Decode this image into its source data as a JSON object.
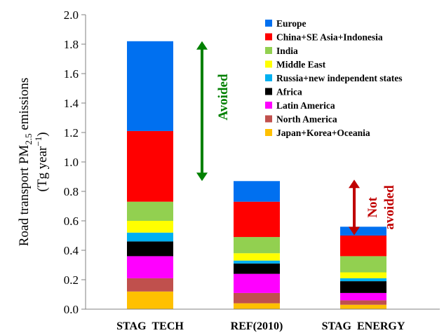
{
  "chart_data": {
    "type": "bar",
    "stacked": true,
    "categories": [
      "STAG_TECH",
      "REF(2010)",
      "STAG_ENERGY"
    ],
    "ylabel_line1": "Road transport PM",
    "ylabel_sub": "2.5",
    "ylabel_line1_end": " emissions",
    "ylabel_line2": "(Tg year",
    "ylabel_line2_sup": "−1",
    "ylabel_line2_end": ")",
    "ylim": [
      0,
      2.0
    ],
    "yticks": [
      "0.0",
      "0.2",
      "0.4",
      "0.6",
      "0.8",
      "1.0",
      "1.2",
      "1.4",
      "1.6",
      "1.8",
      "2.0"
    ],
    "grid": false,
    "legend_position": "top-right",
    "series": [
      {
        "name": "Japan+Korea+Oceania",
        "color": "#FFC000",
        "values": [
          0.12,
          0.04,
          0.03
        ]
      },
      {
        "name": "North America",
        "color": "#C0504D",
        "values": [
          0.09,
          0.07,
          0.03
        ]
      },
      {
        "name": "Latin America",
        "color": "#FF00FF",
        "values": [
          0.15,
          0.13,
          0.05
        ]
      },
      {
        "name": "Africa",
        "color": "#000000",
        "values": [
          0.1,
          0.07,
          0.08
        ]
      },
      {
        "name": "Russia+new independent states",
        "color": "#00B0F0",
        "values": [
          0.06,
          0.02,
          0.02
        ]
      },
      {
        "name": "Middle East",
        "color": "#FFFF00",
        "values": [
          0.08,
          0.05,
          0.04
        ]
      },
      {
        "name": "India",
        "color": "#92D050",
        "values": [
          0.13,
          0.11,
          0.11
        ]
      },
      {
        "name": "China+SE Asia+Indonesia",
        "color": "#FF0000",
        "values": [
          0.48,
          0.24,
          0.14
        ]
      },
      {
        "name": "Europe",
        "color": "#0070F0",
        "values": [
          0.61,
          0.14,
          0.06
        ]
      }
    ],
    "legend_order": [
      8,
      7,
      6,
      5,
      4,
      3,
      2,
      1,
      0
    ],
    "annotations": [
      {
        "text": "Avoided",
        "color": "#008000",
        "from": 0.87,
        "to": 1.82,
        "bar": 0
      },
      {
        "text_line1": "Not",
        "text_line2": "avoided",
        "color": "#C00000",
        "from": 0.55,
        "to": 0.87,
        "bar": 2
      }
    ]
  }
}
